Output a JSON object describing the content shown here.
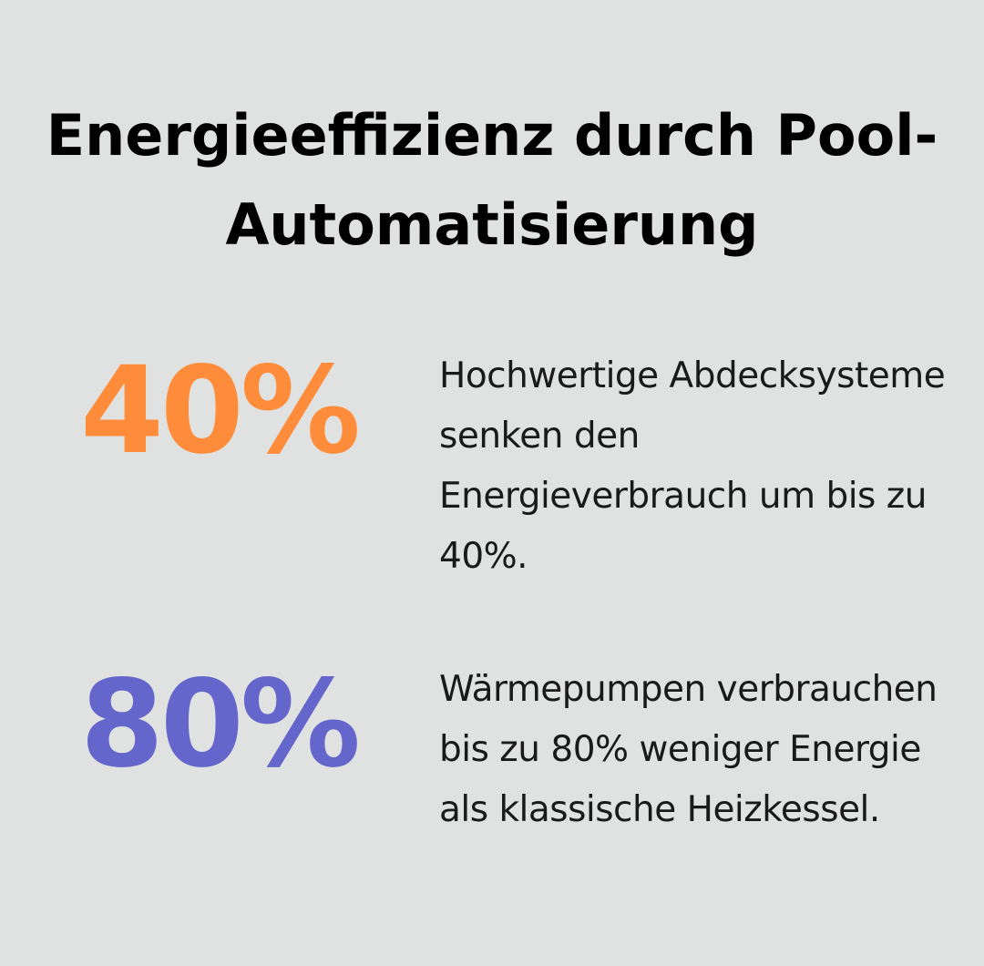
{
  "title": "Energieeffizienz durch Pool-Automatisierung",
  "stats": [
    {
      "value": "40%",
      "color": "#ff8c3a",
      "description": "Hochwertige Abdecksysteme senken den Energieverbrauch um bis zu 40%."
    },
    {
      "value": "80%",
      "color": "#6466cc",
      "description": "Wärmepumpen verbrauchen bis zu 80% weniger Energie als klassische Heizkessel."
    }
  ]
}
